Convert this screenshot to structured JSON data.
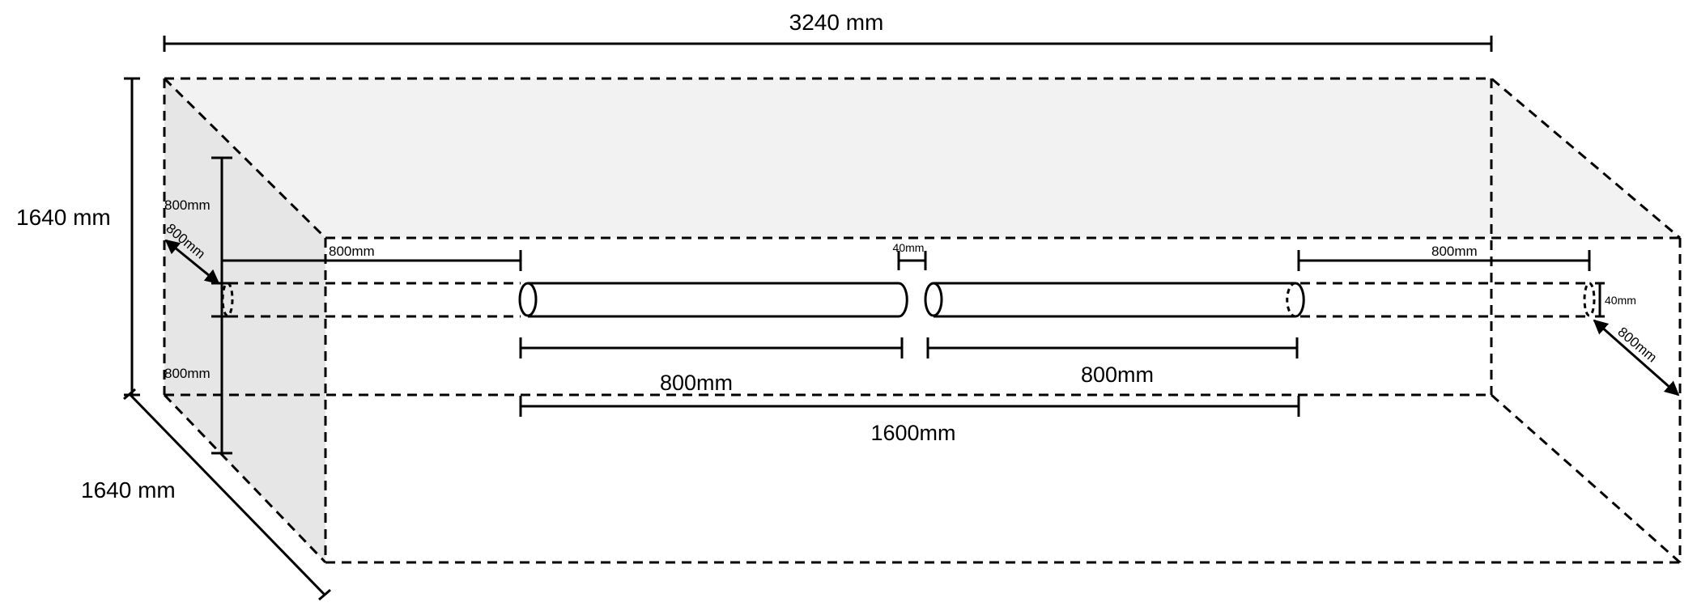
{
  "labels": {
    "width_top": "3240 mm",
    "height_left": "1640 mm",
    "depth_bottom": "1640 mm",
    "left_upper_800": "800mm",
    "left_lower_800": "800mm",
    "left_diag_800": "800mm",
    "left_offset_800": "800mm",
    "gap_40": "40mm",
    "right_offset_800": "800mm",
    "right_dia_40": "40mm",
    "right_diag_800": "800mm",
    "rod1_len": "800mm",
    "rod2_len": "800mm",
    "total_len": "1600mm"
  }
}
